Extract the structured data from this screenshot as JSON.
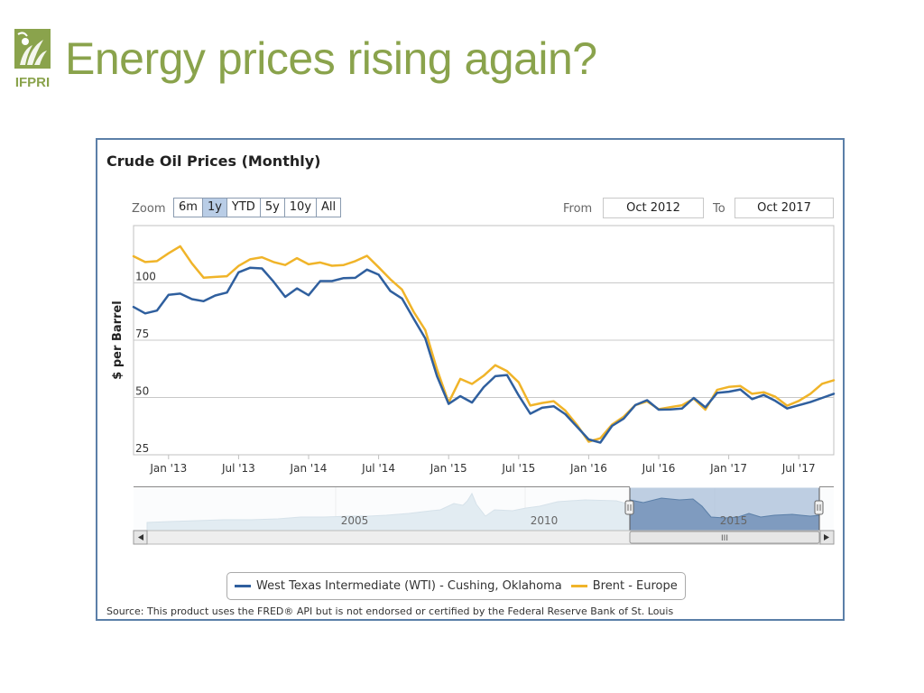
{
  "slide": {
    "title": "Energy prices rising again?",
    "logo_text": "IFPRI",
    "accent_color": "#8aa34c"
  },
  "panel": {
    "zoom_label": "Zoom",
    "zoom_buttons": [
      "6m",
      "1y",
      "YTD",
      "5y",
      "10y",
      "All"
    ],
    "zoom_active": "1y",
    "from_label": "From",
    "from_value": "Oct 2012",
    "to_label": "To",
    "to_value": "Oct 2017",
    "source": "Source: This product uses the FRED® API but is not endorsed or certified by the Federal Reserve Bank of St. Louis",
    "navigator_labels": [
      "2005",
      "2010",
      "2015"
    ],
    "scrollbar_grip": "III"
  },
  "chart_data": {
    "type": "line",
    "title": "Crude Oil Prices (Monthly)",
    "ylabel": "$ per Barrel",
    "xlabel": "",
    "ylim": [
      25,
      125
    ],
    "yticks": [
      25,
      50,
      75,
      100
    ],
    "x_start": "2012-10",
    "x_end": "2017-10",
    "x_ticks": [
      "Jan '13",
      "Jul '13",
      "Jan '14",
      "Jul '14",
      "Jan '15",
      "Jul '15",
      "Jan '16",
      "Jul '16",
      "Jan '17",
      "Jul '17"
    ],
    "x_tick_months": [
      "2013-01",
      "2013-07",
      "2014-01",
      "2014-07",
      "2015-01",
      "2015-07",
      "2016-01",
      "2016-07",
      "2017-01",
      "2017-07"
    ],
    "months": [
      "2012-10",
      "2012-11",
      "2012-12",
      "2013-01",
      "2013-02",
      "2013-03",
      "2013-04",
      "2013-05",
      "2013-06",
      "2013-07",
      "2013-08",
      "2013-09",
      "2013-10",
      "2013-11",
      "2013-12",
      "2014-01",
      "2014-02",
      "2014-03",
      "2014-04",
      "2014-05",
      "2014-06",
      "2014-07",
      "2014-08",
      "2014-09",
      "2014-10",
      "2014-11",
      "2014-12",
      "2015-01",
      "2015-02",
      "2015-03",
      "2015-04",
      "2015-05",
      "2015-06",
      "2015-07",
      "2015-08",
      "2015-09",
      "2015-10",
      "2015-11",
      "2015-12",
      "2016-01",
      "2016-02",
      "2016-03",
      "2016-04",
      "2016-05",
      "2016-06",
      "2016-07",
      "2016-08",
      "2016-09",
      "2016-10",
      "2016-11",
      "2016-12",
      "2017-01",
      "2017-02",
      "2017-03",
      "2017-04",
      "2017-05",
      "2017-06",
      "2017-07",
      "2017-08",
      "2017-09",
      "2017-10"
    ],
    "series": [
      {
        "name": "West Texas Intermediate (WTI) - Cushing, Oklahoma",
        "color": "#2f5f9e",
        "values": [
          89.5,
          86.7,
          87.9,
          94.8,
          95.3,
          92.9,
          92.0,
          94.5,
          95.8,
          104.6,
          106.6,
          106.3,
          100.5,
          93.9,
          97.6,
          94.6,
          100.8,
          100.8,
          102.1,
          102.2,
          105.8,
          103.6,
          96.5,
          93.2,
          84.4,
          75.8,
          59.3,
          47.2,
          50.6,
          47.8,
          54.5,
          59.3,
          59.8,
          50.9,
          42.9,
          45.5,
          46.2,
          42.7,
          37.2,
          31.7,
          30.3,
          37.6,
          40.8,
          46.7,
          48.8,
          44.7,
          44.8,
          45.2,
          49.8,
          45.7,
          52.0,
          52.5,
          53.5,
          49.3,
          51.1,
          48.5,
          45.2,
          46.6,
          48.0,
          49.8,
          51.6
        ]
      },
      {
        "name": "Brent - Europe",
        "color": "#f0b429",
        "values": [
          111.6,
          109.1,
          109.5,
          112.9,
          116.0,
          108.5,
          102.3,
          102.6,
          102.9,
          107.4,
          110.3,
          111.2,
          109.1,
          107.8,
          110.8,
          108.1,
          108.9,
          107.5,
          107.8,
          109.5,
          111.8,
          106.8,
          101.6,
          97.1,
          87.4,
          79.4,
          62.3,
          47.8,
          58.1,
          55.9,
          59.5,
          64.1,
          61.5,
          56.6,
          46.5,
          47.6,
          48.4,
          44.3,
          38.0,
          30.7,
          32.2,
          38.2,
          41.6,
          46.7,
          48.3,
          44.9,
          45.8,
          46.6,
          49.5,
          44.7,
          53.3,
          54.6,
          55.0,
          51.6,
          52.3,
          50.3,
          46.4,
          48.5,
          51.6,
          56.0,
          57.5
        ]
      }
    ],
    "legend_position": "bottom",
    "grid": true
  }
}
